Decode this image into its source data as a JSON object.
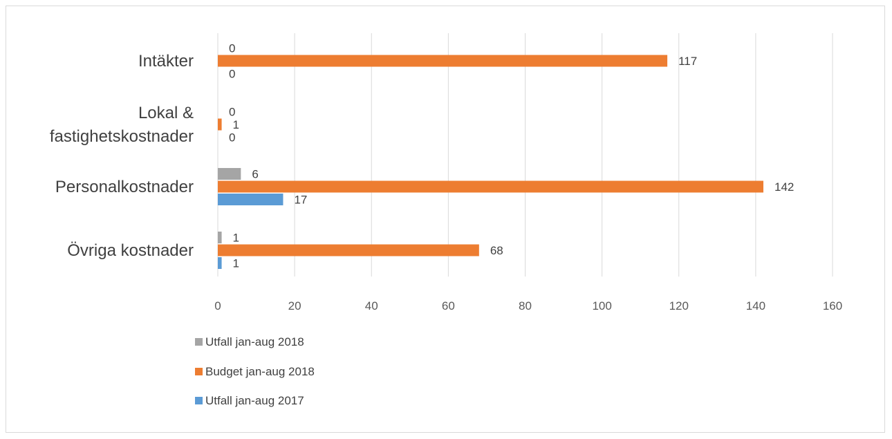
{
  "colors": {
    "utfall_2018": "#a5a5a5",
    "budget_2018": "#ed7d31",
    "utfall_2017": "#5b9bd5",
    "grid": "#d9d9d9",
    "axis_text": "#595959"
  },
  "chart_data": {
    "type": "bar",
    "orientation": "horizontal",
    "categories": [
      "Intäkter",
      "Lokal & fastighetskostnader",
      "Personalkostnader",
      "Övriga kostnader"
    ],
    "category_lines": [
      [
        "Intäkter"
      ],
      [
        "Lokal &",
        "fastighetskostnader"
      ],
      [
        "Personalkostnader"
      ],
      [
        "Övriga kostnader"
      ]
    ],
    "series": [
      {
        "name": "Utfall jan-aug 2018",
        "values": [
          0,
          0,
          6,
          1
        ]
      },
      {
        "name": "Budget jan-aug 2018",
        "values": [
          117,
          1,
          142,
          68
        ]
      },
      {
        "name": "Utfall jan-aug 2017",
        "values": [
          0,
          0,
          17,
          1
        ]
      }
    ],
    "xlim": [
      0,
      160
    ],
    "xticks": [
      "0",
      "20",
      "40",
      "60",
      "80",
      "100",
      "120",
      "140",
      "160"
    ],
    "grid": true,
    "data_labels": true,
    "legend_position": "bottom-left",
    "title": "",
    "xlabel": "",
    "ylabel": ""
  }
}
